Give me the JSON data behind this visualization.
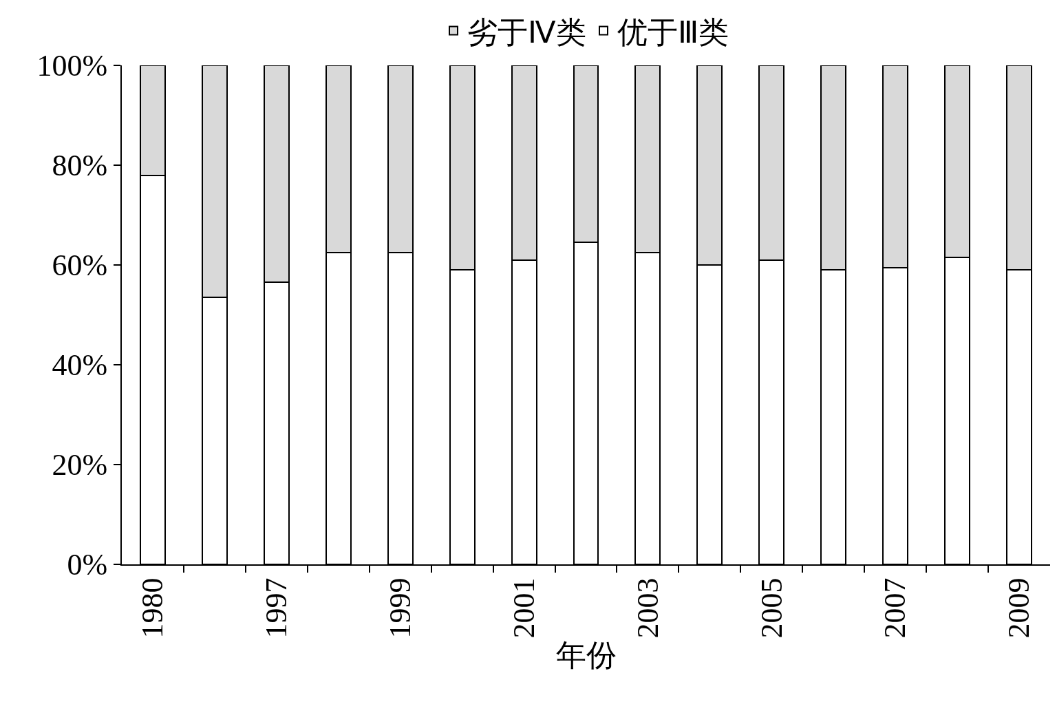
{
  "chart_data": {
    "type": "bar",
    "stacked": true,
    "xlabel": "年份",
    "categories": [
      "1980",
      null,
      "1997",
      null,
      "1999",
      null,
      "2001",
      null,
      "2003",
      null,
      "2005",
      null,
      "2007",
      null,
      "2009"
    ],
    "series": [
      {
        "name": "优于Ⅲ类",
        "color": "#ffffff",
        "values": [
          78,
          53.5,
          56.5,
          62.5,
          62.5,
          59,
          61,
          64.5,
          62.5,
          60,
          61,
          59,
          59.5,
          61.5,
          59
        ]
      },
      {
        "name": "劣于Ⅳ类",
        "color": "#d9d9d9",
        "values": [
          22,
          46.5,
          43.5,
          37.5,
          37.5,
          41,
          39,
          35.5,
          37.5,
          40,
          39,
          41,
          40.5,
          38.5,
          41
        ]
      }
    ],
    "ylim": [
      0,
      100
    ],
    "yticks": [
      {
        "value": 0,
        "label": "0%"
      },
      {
        "value": 20,
        "label": "20%"
      },
      {
        "value": 40,
        "label": "40%"
      },
      {
        "value": 60,
        "label": "60%"
      },
      {
        "value": 80,
        "label": "80%"
      },
      {
        "value": 100,
        "label": "100%"
      }
    ],
    "grid": false,
    "legend": "top"
  }
}
